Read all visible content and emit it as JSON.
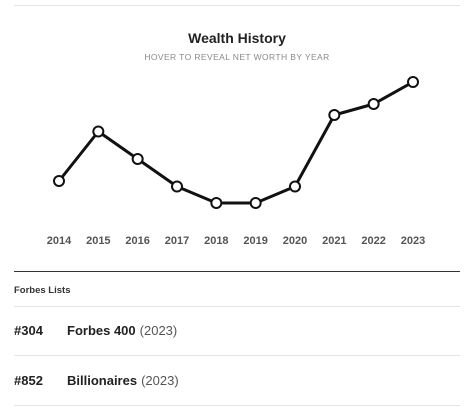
{
  "chart": {
    "title": "Wealth History",
    "subtitle": "HOVER TO REVEAL NET WORTH BY YEAR"
  },
  "chart_data": {
    "type": "line",
    "title": "Wealth History",
    "subtitle": "HOVER TO REVEAL NET WORTH BY YEAR",
    "categories": [
      "2014",
      "2015",
      "2016",
      "2017",
      "2018",
      "2019",
      "2020",
      "2021",
      "2022",
      "2023"
    ],
    "values": [
      2.4,
      3.3,
      2.8,
      2.3,
      2.0,
      2.0,
      2.3,
      3.6,
      3.8,
      4.2
    ],
    "ylim": [
      1.6,
      4.6
    ],
    "grid": false,
    "line_color": "#111111",
    "marker_fill": "#ffffff"
  },
  "forbes": {
    "section_label": "Forbes Lists",
    "rows": [
      {
        "rank": "#304",
        "name": "Forbes 400",
        "year": "(2023)"
      },
      {
        "rank": "#852",
        "name": "Billionaires",
        "year": "(2023)"
      }
    ]
  }
}
